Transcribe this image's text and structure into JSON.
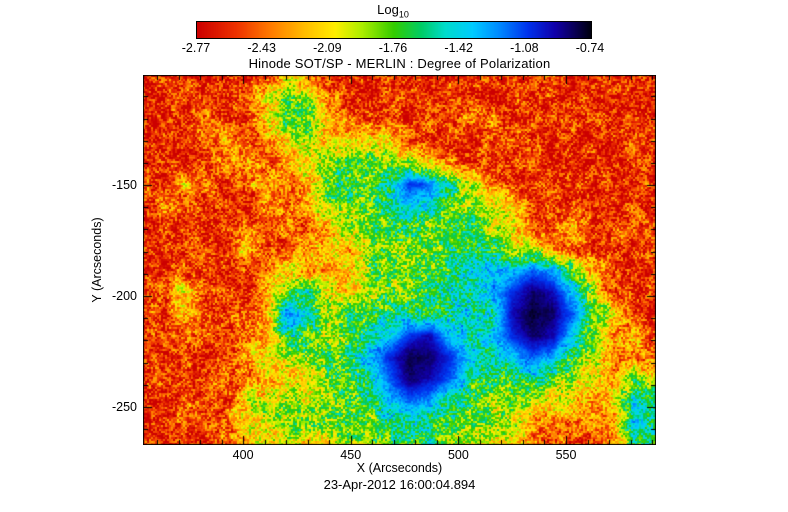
{
  "figure": {
    "title": "Hinode SOT/SP - MERLIN : Degree of Polarization",
    "timestamp": "23-Apr-2012 16:00:04.894",
    "colorbar": {
      "label_base": "Log",
      "label_sub": "10",
      "tick_labels": [
        "-2.77",
        "-2.43",
        "-2.09",
        "-1.76",
        "-1.42",
        "-1.08",
        "-0.74"
      ]
    },
    "x_axis": {
      "label": "X (Arcseconds)",
      "ticks": [
        400,
        450,
        500,
        550
      ],
      "minor_tick_step": 10
    },
    "y_axis": {
      "label": "Y (Arcseconds)",
      "ticks": [
        -150,
        -200,
        -250
      ],
      "minor_tick_step": 10
    }
  },
  "chart_data": {
    "type": "heatmap",
    "title": "Hinode SOT/SP - MERLIN : Degree of Polarization",
    "xlabel": "X (Arcseconds)",
    "ylabel": "Y (Arcseconds)",
    "value_label": "Log10 Degree of Polarization",
    "value_range": [
      -2.77,
      -0.74
    ],
    "x_range": [
      353.5,
      591.8
    ],
    "y_range": [
      -267.1,
      -100.4
    ],
    "grid": false,
    "legend_position": "top-colorbar",
    "colormap_stops": [
      [
        0.0,
        "#cc0000"
      ],
      [
        0.1,
        "#ee3300"
      ],
      [
        0.18,
        "#ff7700"
      ],
      [
        0.27,
        "#ffbb00"
      ],
      [
        0.35,
        "#ffee00"
      ],
      [
        0.42,
        "#aaee00"
      ],
      [
        0.5,
        "#33cc00"
      ],
      [
        0.57,
        "#00cc66"
      ],
      [
        0.63,
        "#00ddcc"
      ],
      [
        0.7,
        "#00ccff"
      ],
      [
        0.77,
        "#0088ff"
      ],
      [
        0.84,
        "#0033ee"
      ],
      [
        0.91,
        "#1100aa"
      ],
      [
        0.96,
        "#0a0055"
      ],
      [
        1.0,
        "#000010"
      ]
    ],
    "values_log10": [
      [
        -2.61,
        -2.57,
        -2.61,
        -2.67,
        -2.61,
        -2.53,
        -2.61,
        -2.16,
        -2.36,
        -2.61,
        -2.57,
        -2.61,
        -2.53,
        -2.61,
        -2.67,
        -2.61,
        -2.57,
        -2.61,
        -2.53,
        -2.61,
        -2.57,
        -2.67,
        -2.61,
        -2.57,
        -2.61,
        -2.61
      ],
      [
        -2.57,
        -2.61,
        -2.53,
        -2.61,
        -2.57,
        -2.61,
        -2.06,
        -1.76,
        -1.86,
        -2.36,
        -2.61,
        -2.57,
        -2.61,
        -2.53,
        -2.61,
        -2.57,
        -2.61,
        -2.67,
        -2.61,
        -2.57,
        -2.61,
        -2.53,
        -2.61,
        -2.57,
        -2.61,
        -2.57
      ],
      [
        -2.61,
        -2.57,
        -2.61,
        -2.36,
        -2.61,
        -2.57,
        -2.16,
        -1.65,
        -1.76,
        -2.16,
        -2.47,
        -2.61,
        -2.57,
        -2.61,
        -2.53,
        -2.61,
        -2.26,
        -2.36,
        -2.61,
        -2.57,
        -2.61,
        -2.61,
        -2.53,
        -2.61,
        -2.57,
        -2.61
      ],
      [
        -2.57,
        -2.61,
        -2.53,
        -2.61,
        -2.16,
        -2.47,
        -2.36,
        -2.06,
        -1.86,
        -2.16,
        -2.16,
        -2.06,
        -2.16,
        -2.47,
        -2.61,
        -2.57,
        -2.61,
        -2.53,
        -2.61,
        -2.57,
        -2.67,
        -2.61,
        -2.57,
        -2.61,
        -2.53,
        -2.57
      ],
      [
        -2.61,
        -2.53,
        -2.61,
        -2.57,
        -2.47,
        -2.26,
        -2.57,
        -2.36,
        -2.06,
        -1.86,
        -1.76,
        -1.76,
        -1.86,
        -1.96,
        -2.26,
        -2.47,
        -2.61,
        -2.57,
        -2.61,
        -2.53,
        -2.61,
        -2.57,
        -2.61,
        -2.67,
        -2.61,
        -2.61
      ],
      [
        -2.57,
        -2.61,
        -2.26,
        -2.36,
        -2.61,
        -2.47,
        -2.16,
        -2.47,
        -2.36,
        -1.76,
        -1.65,
        -1.76,
        -1.55,
        -1.04,
        -1.15,
        -1.65,
        -1.96,
        -2.36,
        -2.57,
        -2.61,
        -2.53,
        -2.61,
        -2.57,
        -2.61,
        -2.57,
        -2.61
      ],
      [
        -2.61,
        -2.26,
        -2.57,
        -2.61,
        -2.53,
        -2.61,
        -2.36,
        -2.47,
        -2.26,
        -1.86,
        -1.76,
        -1.86,
        -1.55,
        -1.35,
        -1.55,
        -1.76,
        -1.86,
        -2.06,
        -2.16,
        -2.47,
        -2.61,
        -2.57,
        -2.61,
        -2.53,
        -2.61,
        -2.57
      ],
      [
        -2.57,
        -2.61,
        -2.53,
        -2.61,
        -2.57,
        -2.47,
        -2.61,
        -2.36,
        -2.47,
        -2.26,
        -1.96,
        -1.76,
        -1.65,
        -1.76,
        -1.86,
        -1.76,
        -1.65,
        -1.86,
        -2.16,
        -2.47,
        -2.61,
        -2.16,
        -2.57,
        -2.61,
        -2.36,
        -2.61
      ],
      [
        -2.61,
        -2.57,
        -2.61,
        -2.47,
        -2.61,
        -2.16,
        -2.53,
        -2.47,
        -2.36,
        -2.16,
        -2.26,
        -1.86,
        -1.76,
        -1.86,
        -1.76,
        -1.65,
        -1.55,
        -1.65,
        -1.86,
        -2.06,
        -2.36,
        -2.57,
        -2.61,
        -2.53,
        -2.61,
        -2.57
      ],
      [
        -2.57,
        -2.61,
        -2.47,
        -2.61,
        -2.53,
        -2.61,
        -2.36,
        -2.06,
        -2.26,
        -2.36,
        -2.16,
        -1.86,
        -1.76,
        -1.86,
        -1.76,
        -1.65,
        -1.55,
        -1.35,
        -1.35,
        -1.15,
        -1.25,
        -1.76,
        -2.26,
        -2.57,
        -2.61,
        -2.61
      ],
      [
        -2.61,
        -2.53,
        -2.06,
        -2.47,
        -2.61,
        -2.57,
        -2.36,
        -1.76,
        -1.65,
        -2.06,
        -2.16,
        -1.96,
        -1.86,
        -1.76,
        -1.65,
        -1.55,
        -1.55,
        -1.35,
        -1.04,
        -0.84,
        -0.94,
        -1.35,
        -1.96,
        -2.47,
        -2.61,
        -2.57
      ],
      [
        -2.57,
        -2.61,
        -2.16,
        -2.53,
        -2.57,
        -2.47,
        -2.26,
        -1.25,
        -1.35,
        -1.96,
        -1.76,
        -1.65,
        -1.65,
        -1.55,
        -1.65,
        -1.55,
        -1.45,
        -1.55,
        -0.94,
        -0.78,
        -0.84,
        -1.15,
        -1.76,
        -2.06,
        -2.53,
        -2.61
      ],
      [
        -2.61,
        -2.57,
        -2.47,
        -2.36,
        -2.61,
        -2.53,
        -2.26,
        -1.55,
        -1.76,
        -1.86,
        -1.76,
        -1.55,
        -1.35,
        -1.04,
        -0.94,
        -1.35,
        -1.55,
        -1.35,
        -1.04,
        -0.84,
        -0.94,
        -1.35,
        -1.86,
        -2.36,
        -2.16,
        -2.57
      ],
      [
        -2.57,
        -2.61,
        -2.53,
        -2.61,
        -2.47,
        -2.36,
        -2.06,
        -1.96,
        -1.86,
        -1.76,
        -1.65,
        -1.35,
        -1.04,
        -0.8,
        -0.84,
        -1.04,
        -1.35,
        -1.55,
        -1.35,
        -1.15,
        -1.25,
        -1.76,
        -1.96,
        -2.26,
        -2.47,
        -2.36
      ],
      [
        -2.61,
        -2.53,
        -2.61,
        -2.57,
        -2.36,
        -2.47,
        -2.26,
        -2.16,
        -2.06,
        -1.86,
        -1.76,
        -1.55,
        -1.15,
        -0.84,
        -0.94,
        -1.15,
        -1.55,
        -1.76,
        -1.76,
        -1.55,
        -1.76,
        -1.96,
        -2.06,
        -2.26,
        -1.76,
        -2.06
      ],
      [
        -2.57,
        -2.61,
        -2.47,
        -2.53,
        -2.61,
        -2.06,
        -1.96,
        -1.86,
        -1.96,
        -1.86,
        -1.76,
        -1.65,
        -1.35,
        -1.15,
        -1.25,
        -1.55,
        -1.76,
        -1.86,
        -1.86,
        -1.96,
        -2.06,
        -2.16,
        -2.36,
        -2.06,
        -1.45,
        -1.55
      ],
      [
        -2.61,
        -2.57,
        -2.53,
        -2.47,
        -2.36,
        -2.16,
        -1.96,
        -1.86,
        -1.76,
        -1.86,
        -1.76,
        -1.86,
        -1.65,
        -1.55,
        -1.65,
        -1.76,
        -1.86,
        -1.76,
        -1.96,
        -2.26,
        -2.36,
        -2.47,
        -2.36,
        -2.26,
        -1.35,
        -1.55
      ],
      [
        -2.57,
        -2.61,
        -2.61,
        -2.53,
        -2.47,
        -2.26,
        -2.06,
        -1.96,
        -2.06,
        -1.96,
        -1.86,
        -1.96,
        -1.76,
        -1.65,
        -1.55,
        -1.86,
        -1.96,
        -2.06,
        -2.16,
        -2.36,
        -2.47,
        -2.57,
        -2.53,
        -2.36,
        -1.55,
        -1.76
      ]
    ]
  }
}
